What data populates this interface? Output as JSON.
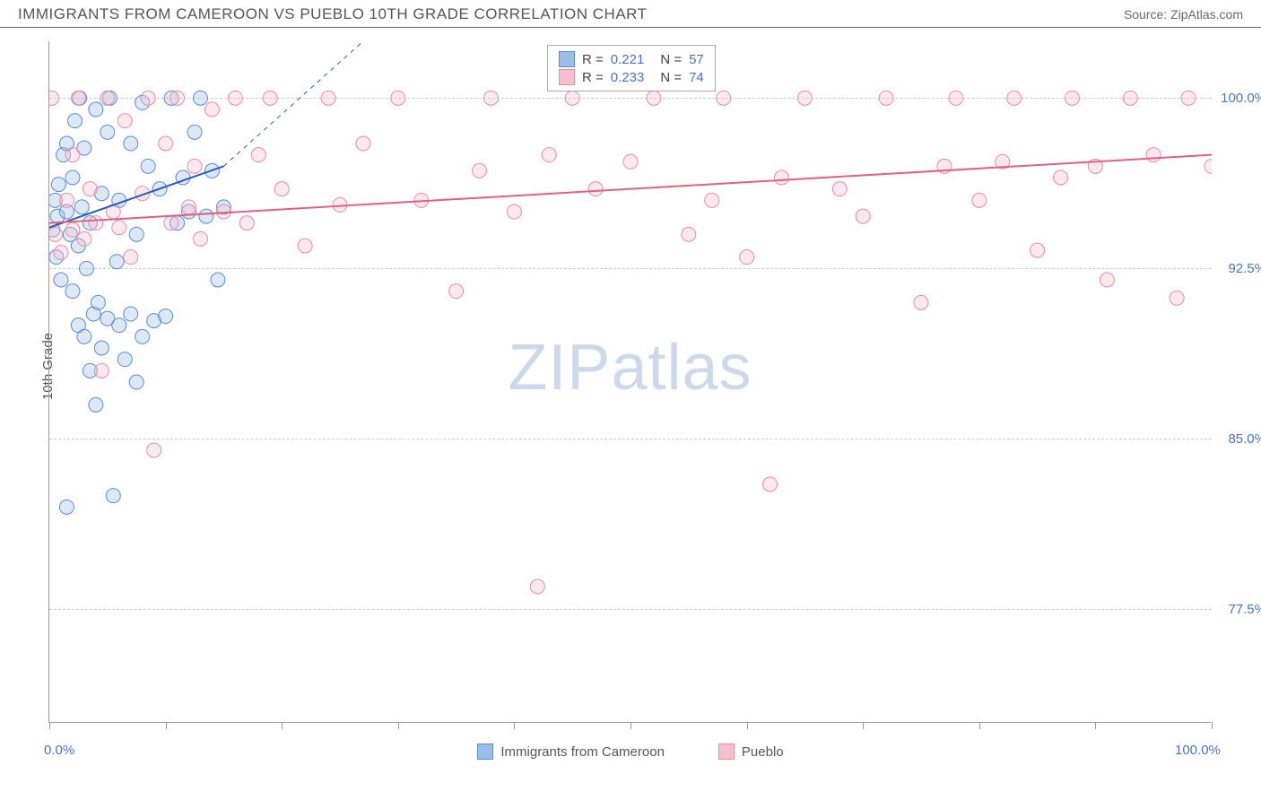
{
  "header": {
    "title": "IMMIGRANTS FROM CAMEROON VS PUEBLO 10TH GRADE CORRELATION CHART",
    "source": "Source: ZipAtlas.com"
  },
  "chart": {
    "type": "scatter",
    "ylabel": "10th Grade",
    "watermark_zip": "ZIP",
    "watermark_atlas": "atlas",
    "xlim": [
      0,
      100
    ],
    "ylim": [
      72.5,
      102.5
    ],
    "x_ticks": [
      0,
      10,
      20,
      30,
      40,
      50,
      60,
      70,
      80,
      90,
      100
    ],
    "x_tick_labels": {
      "0": "0.0%",
      "100": "100.0%"
    },
    "y_ticks": [
      77.5,
      85.0,
      92.5,
      100.0
    ],
    "y_tick_labels": [
      "77.5%",
      "85.0%",
      "92.5%",
      "100.0%"
    ],
    "background_color": "#ffffff",
    "grid_color": "#cccccc",
    "axis_color": "#999999",
    "label_fontsize": 15,
    "tick_label_color": "#4a72c4",
    "marker_radius": 8,
    "marker_stroke_width": 1,
    "marker_fill_opacity": 0.35,
    "series": [
      {
        "name": "Immigrants from Cameroon",
        "color_fill": "#9dbce8",
        "color_stroke": "#5a8cd0",
        "R": "0.221",
        "N": "57",
        "trend": {
          "x1": 0,
          "y1": 94.3,
          "x2": 15,
          "y2": 97.0,
          "solid_until_x": 15,
          "dash_to_x": 27,
          "dash_to_y": 102.5,
          "stroke": "#2a5cb0",
          "width": 2
        },
        "points": [
          [
            0.3,
            94.2
          ],
          [
            0.5,
            95.5
          ],
          [
            0.6,
            93.0
          ],
          [
            0.7,
            94.8
          ],
          [
            0.8,
            96.2
          ],
          [
            1.0,
            92.0
          ],
          [
            1.2,
            97.5
          ],
          [
            1.5,
            95.0
          ],
          [
            1.5,
            98.0
          ],
          [
            1.8,
            94.0
          ],
          [
            2.0,
            91.5
          ],
          [
            2.0,
            96.5
          ],
          [
            2.2,
            99.0
          ],
          [
            2.5,
            93.5
          ],
          [
            2.5,
            90.0
          ],
          [
            2.6,
            100.0
          ],
          [
            2.8,
            95.2
          ],
          [
            3.0,
            89.5
          ],
          [
            3.0,
            97.8
          ],
          [
            3.2,
            92.5
          ],
          [
            3.5,
            88.0
          ],
          [
            3.5,
            94.5
          ],
          [
            3.8,
            90.5
          ],
          [
            4.0,
            99.5
          ],
          [
            4.0,
            86.5
          ],
          [
            4.2,
            91.0
          ],
          [
            4.5,
            95.8
          ],
          [
            4.5,
            89.0
          ],
          [
            5.0,
            98.5
          ],
          [
            5.0,
            90.3
          ],
          [
            5.2,
            100.0
          ],
          [
            5.5,
            82.5
          ],
          [
            5.8,
            92.8
          ],
          [
            6.0,
            95.5
          ],
          [
            6.0,
            90.0
          ],
          [
            6.5,
            88.5
          ],
          [
            7.0,
            98.0
          ],
          [
            7.0,
            90.5
          ],
          [
            7.5,
            94.0
          ],
          [
            8.0,
            89.5
          ],
          [
            8.0,
            99.8
          ],
          [
            8.5,
            97.0
          ],
          [
            9.0,
            90.2
          ],
          [
            9.5,
            96.0
          ],
          [
            10.0,
            90.4
          ],
          [
            10.5,
            100.0
          ],
          [
            11.0,
            94.5
          ],
          [
            11.5,
            96.5
          ],
          [
            12.0,
            95.0
          ],
          [
            12.5,
            98.5
          ],
          [
            13.0,
            100.0
          ],
          [
            13.5,
            94.8
          ],
          [
            14.0,
            96.8
          ],
          [
            14.5,
            92.0
          ],
          [
            15.0,
            95.2
          ],
          [
            7.5,
            87.5
          ],
          [
            1.5,
            82.0
          ]
        ]
      },
      {
        "name": "Pueblo",
        "color_fill": "#f5c0cc",
        "color_stroke": "#e88ba5",
        "R": "0.233",
        "N": "74",
        "trend": {
          "x1": 0,
          "y1": 94.5,
          "x2": 100,
          "y2": 97.5,
          "stroke": "#e0607f",
          "width": 2
        },
        "points": [
          [
            0.2,
            100.0
          ],
          [
            0.5,
            94.0
          ],
          [
            1.0,
            93.2
          ],
          [
            1.5,
            95.5
          ],
          [
            2.0,
            97.5
          ],
          [
            2.0,
            94.2
          ],
          [
            2.5,
            100.0
          ],
          [
            3.0,
            93.8
          ],
          [
            3.5,
            96.0
          ],
          [
            4.0,
            94.5
          ],
          [
            4.5,
            88.0
          ],
          [
            5.0,
            100.0
          ],
          [
            5.5,
            95.0
          ],
          [
            6.0,
            94.3
          ],
          [
            6.5,
            99.0
          ],
          [
            7.0,
            93.0
          ],
          [
            8.0,
            95.8
          ],
          [
            8.5,
            100.0
          ],
          [
            9.0,
            84.5
          ],
          [
            10.0,
            98.0
          ],
          [
            10.5,
            94.5
          ],
          [
            11.0,
            100.0
          ],
          [
            12.0,
            95.2
          ],
          [
            12.5,
            97.0
          ],
          [
            13.0,
            93.8
          ],
          [
            14.0,
            99.5
          ],
          [
            15.0,
            95.0
          ],
          [
            16.0,
            100.0
          ],
          [
            17.0,
            94.5
          ],
          [
            18.0,
            97.5
          ],
          [
            19.0,
            100.0
          ],
          [
            20.0,
            96.0
          ],
          [
            22.0,
            93.5
          ],
          [
            24.0,
            100.0
          ],
          [
            25.0,
            95.3
          ],
          [
            27.0,
            98.0
          ],
          [
            30.0,
            100.0
          ],
          [
            32.0,
            95.5
          ],
          [
            35.0,
            91.5
          ],
          [
            37.0,
            96.8
          ],
          [
            38.0,
            100.0
          ],
          [
            40.0,
            95.0
          ],
          [
            42.0,
            78.5
          ],
          [
            43.0,
            97.5
          ],
          [
            45.0,
            100.0
          ],
          [
            47.0,
            96.0
          ],
          [
            50.0,
            97.2
          ],
          [
            52.0,
            100.0
          ],
          [
            55.0,
            94.0
          ],
          [
            57.0,
            95.5
          ],
          [
            58.0,
            100.0
          ],
          [
            60.0,
            93.0
          ],
          [
            62.0,
            83.0
          ],
          [
            63.0,
            96.5
          ],
          [
            65.0,
            100.0
          ],
          [
            68.0,
            96.0
          ],
          [
            70.0,
            94.8
          ],
          [
            72.0,
            100.0
          ],
          [
            75.0,
            91.0
          ],
          [
            77.0,
            97.0
          ],
          [
            78.0,
            100.0
          ],
          [
            80.0,
            95.5
          ],
          [
            82.0,
            97.2
          ],
          [
            83.0,
            100.0
          ],
          [
            85.0,
            93.3
          ],
          [
            87.0,
            96.5
          ],
          [
            88.0,
            100.0
          ],
          [
            90.0,
            97.0
          ],
          [
            91.0,
            92.0
          ],
          [
            93.0,
            100.0
          ],
          [
            95.0,
            97.5
          ],
          [
            97.0,
            91.2
          ],
          [
            98.0,
            100.0
          ],
          [
            100.0,
            97.0
          ]
        ]
      }
    ],
    "legend_bottom": [
      {
        "label": "Immigrants from Cameroon",
        "fill": "#9dbce8",
        "stroke": "#5a8cd0"
      },
      {
        "label": "Pueblo",
        "fill": "#f5c0cc",
        "stroke": "#e88ba5"
      }
    ],
    "legend_top_rows": [
      {
        "fill": "#9dbce8",
        "stroke": "#5a8cd0",
        "R": "0.221",
        "N": "57"
      },
      {
        "fill": "#f5c0cc",
        "stroke": "#e88ba5",
        "R": "0.233",
        "N": "74"
      }
    ]
  }
}
